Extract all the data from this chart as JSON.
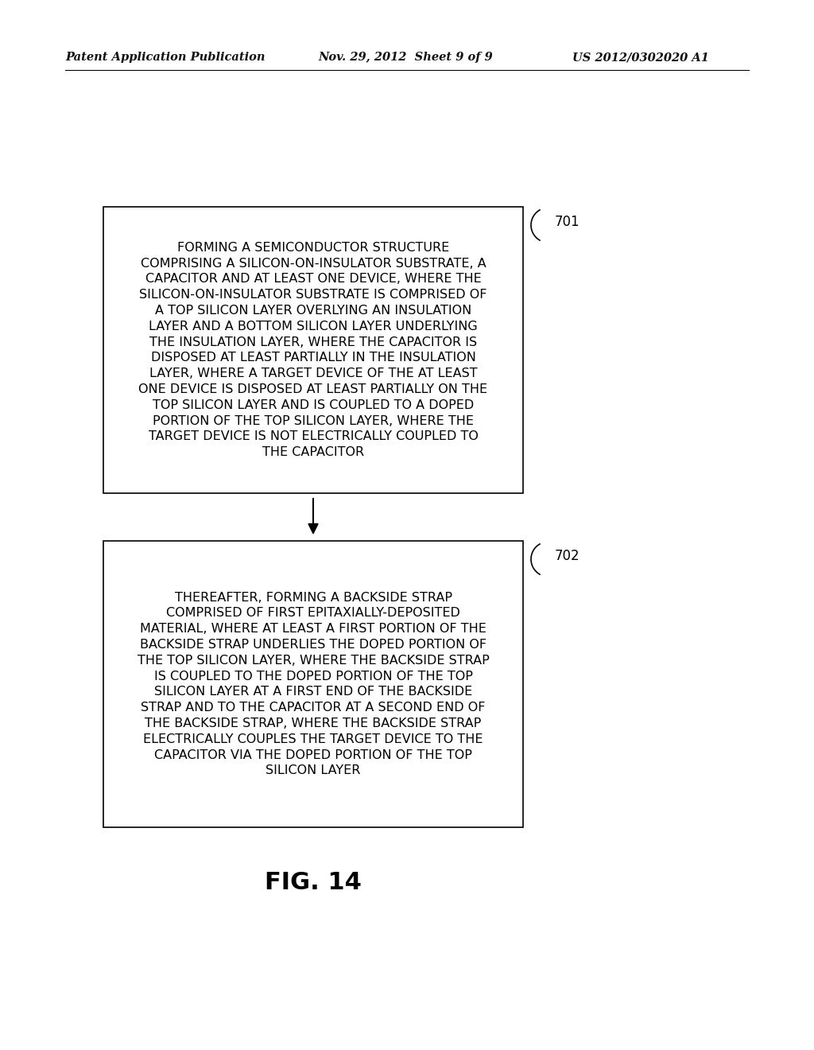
{
  "background_color": "#ffffff",
  "header_left": "Patent Application Publication",
  "header_center": "Nov. 29, 2012  Sheet 9 of 9",
  "header_right": "US 2012/0302020 A1",
  "box1_text": "FORMING A SEMICONDUCTOR STRUCTURE\nCOMPRISING A SILICON-ON-INSULATOR SUBSTRATE, A\nCAPACITOR AND AT LEAST ONE DEVICE, WHERE THE\nSILICON-ON-INSULATOR SUBSTRATE IS COMPRISED OF\nA TOP SILICON LAYER OVERLYING AN INSULATION\nLAYER AND A BOTTOM SILICON LAYER UNDERLYING\nTHE INSULATION LAYER, WHERE THE CAPACITOR IS\nDISPOSED AT LEAST PARTIALLY IN THE INSULATION\nLAYER, WHERE A TARGET DEVICE OF THE AT LEAST\nONE DEVICE IS DISPOSED AT LEAST PARTIALLY ON THE\nTOP SILICON LAYER AND IS COUPLED TO A DOPED\nPORTION OF THE TOP SILICON LAYER, WHERE THE\nTARGET DEVICE IS NOT ELECTRICALLY COUPLED TO\nTHE CAPACITOR",
  "box1_label": "701",
  "box2_text": "THEREAFTER, FORMING A BACKSIDE STRAP\nCOMPRISED OF FIRST EPITAXIALLY-DEPOSITED\nMATERIAL, WHERE AT LEAST A FIRST PORTION OF THE\nBACKSIDE STRAP UNDERLIES THE DOPED PORTION OF\nTHE TOP SILICON LAYER, WHERE THE BACKSIDE STRAP\nIS COUPLED TO THE DOPED PORTION OF THE TOP\nSILICON LAYER AT A FIRST END OF THE BACKSIDE\nSTRAP AND TO THE CAPACITOR AT A SECOND END OF\nTHE BACKSIDE STRAP, WHERE THE BACKSIDE STRAP\nELECTRICALLY COUPLES THE TARGET DEVICE TO THE\nCAPACITOR VIA THE DOPED PORTION OF THE TOP\nSILICON LAYER",
  "box2_label": "702",
  "fig_label": "FIG. 14"
}
